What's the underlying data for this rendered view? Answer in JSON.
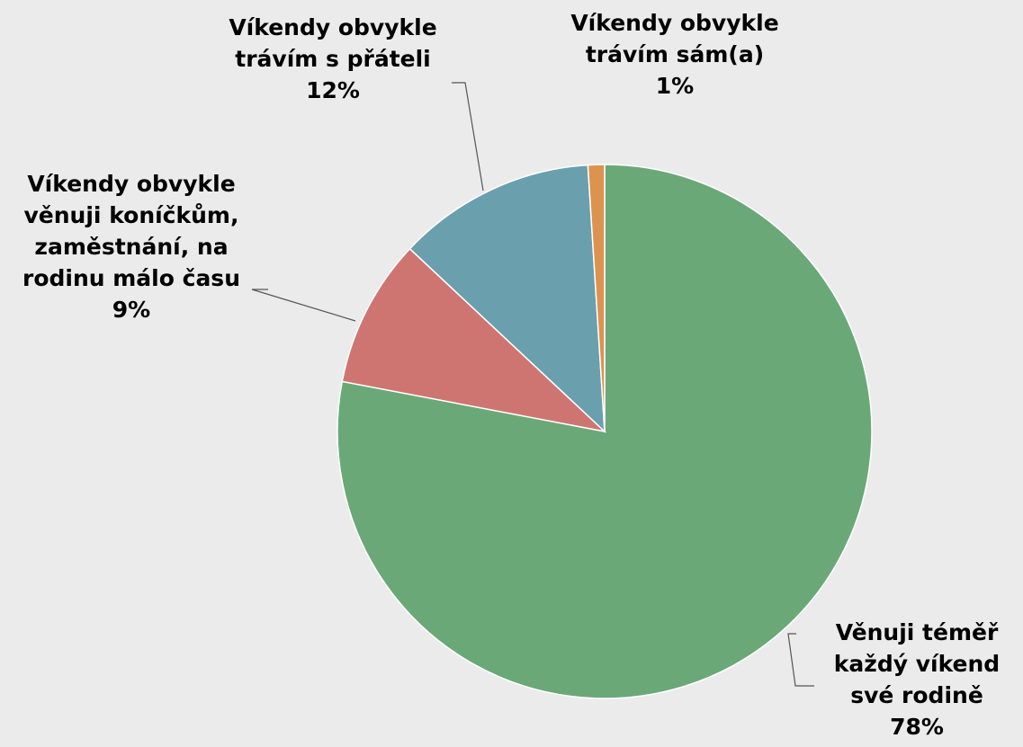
{
  "chart_data": {
    "type": "pie",
    "categories": [
      "Věnuji téměř každý víkend své rodině",
      "Víkendy obvykle věnuji koníčkům, zaměstnání, na rodinu málo času",
      "Víkendy obvykle trávím s přáteli",
      "Víkendy obvykle trávím sám(a)"
    ],
    "values": [
      78,
      9,
      12,
      1
    ],
    "value_labels": [
      "78%",
      "9%",
      "12%",
      "1%"
    ],
    "colors": [
      "#6aa878",
      "#cf7571",
      "#6a9fae",
      "#dc9350"
    ]
  }
}
